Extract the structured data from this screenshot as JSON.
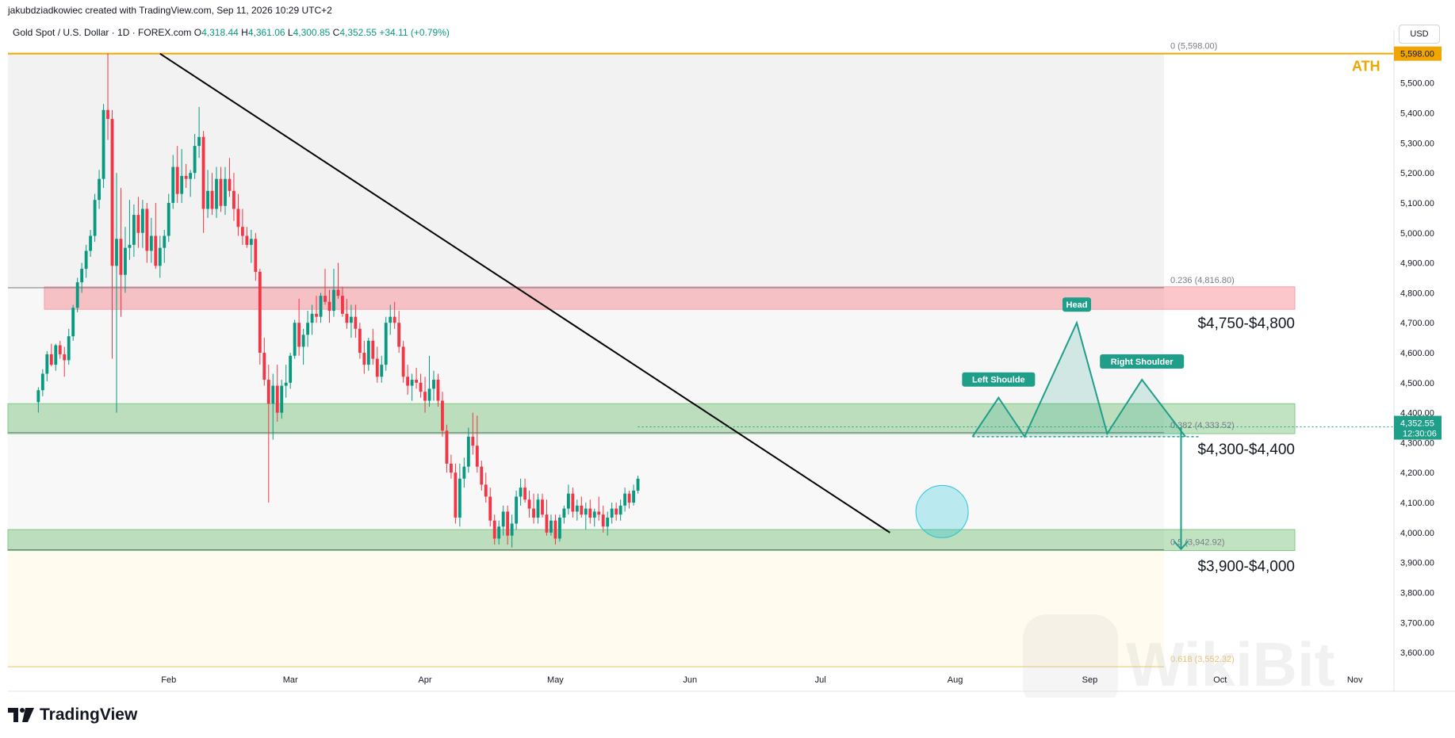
{
  "header": {
    "credit": "jakubdziadkowiec created with TradingView.com, Sep 11, 2026 10:29 UTC+2",
    "symbol": "Gold Spot / U.S. Dollar · 1D · FOREX.com",
    "ohlc": {
      "o_label": "O",
      "o": "4,318.44",
      "h_label": "H",
      "h": "4,361.06",
      "l_label": "L",
      "l": "4,300.85",
      "c_label": "C",
      "c": "4,352.55",
      "change": "+34.11 (+0.79%)"
    },
    "currency": "USD"
  },
  "brand": {
    "name": "TradingView"
  },
  "watermark": "WikiBit",
  "colors": {
    "up": "#089981",
    "down": "#f23645",
    "red_zone": "rgba(242,54,69,0.28)",
    "green_zone": "rgba(76,175,80,0.35)",
    "ath_line": "#f0a500",
    "fib_618": "#e9c46a",
    "pattern": "#1f9e89"
  },
  "chart_data": {
    "type": "candlestick",
    "title": "Gold Spot / U.S. Dollar · 1D · FOREX.com",
    "y_axis": {
      "ylim": [
        3550,
        5650
      ],
      "ticks": [
        "3,600.00",
        "3,700.00",
        "3,800.00",
        "3,900.00",
        "4,000.00",
        "4,100.00",
        "4,200.00",
        "4,300.00",
        "4,400.00",
        "4,500.00",
        "4,600.00",
        "4,700.00",
        "4,800.00",
        "4,900.00",
        "5,000.00",
        "5,100.00",
        "5,200.00",
        "5,300.00",
        "5,400.00",
        "5,500.00"
      ],
      "tick_values": [
        3600,
        3700,
        3800,
        3900,
        4000,
        4100,
        4200,
        4300,
        4400,
        4500,
        4600,
        4700,
        4800,
        4900,
        5000,
        5100,
        5200,
        5300,
        5400,
        5500
      ]
    },
    "x_axis": {
      "labels": [
        "Feb",
        "Mar",
        "Apr",
        "May",
        "Jun",
        "Jul",
        "Aug",
        "Sep",
        "Oct",
        "Nov"
      ],
      "label_days": [
        31,
        59,
        90,
        120,
        151,
        181,
        212,
        243,
        273,
        304
      ]
    },
    "last_price": {
      "value": 4352.55,
      "label": "4,352.55",
      "countdown": "12:30:06"
    },
    "ath": {
      "value": 5598.0,
      "label": "5,598.00",
      "text": "ATH"
    },
    "fib_levels": [
      {
        "label": "0 (5,598.00)",
        "value": 5598.0
      },
      {
        "label": "0.236 (4,816.80)",
        "value": 4816.8
      },
      {
        "label": "0.382 (4,333.52)",
        "value": 4333.52
      },
      {
        "label": "0.5 (3,942.92)",
        "value": 3942.92
      },
      {
        "label": "0.618 (3,552.32)",
        "value": 3552.32
      }
    ],
    "zones": [
      {
        "label": "$4,750-$4,800",
        "low": 4745,
        "high": 4820,
        "kind": "resistance"
      },
      {
        "label": "$4,300-$4,400",
        "low": 4330,
        "high": 4430,
        "kind": "support"
      },
      {
        "label": "$3,900-$4,000",
        "low": 3940,
        "high": 4010,
        "kind": "support"
      }
    ],
    "trendline": {
      "from": {
        "day": 29,
        "price": 5598
      },
      "to": {
        "day": 197,
        "price": 4000
      }
    },
    "pattern_labels": [
      "Left Shoulde",
      "Head",
      "Right Shoulder"
    ],
    "head_and_shoulders": {
      "points": [
        [
          216,
          4320
        ],
        [
          222,
          4450
        ],
        [
          228,
          4320
        ],
        [
          240,
          4700
        ],
        [
          247,
          4330
        ],
        [
          255,
          4510
        ],
        [
          265,
          4320
        ]
      ],
      "neckline": 4320
    },
    "projection": {
      "from": {
        "day": 264,
        "price": 4352
      },
      "to": {
        "day": 264,
        "price": 3945
      }
    },
    "breakout_marker": {
      "day": 209,
      "price": 4070
    },
    "candles": [
      {
        "day": 1,
        "o": 4435,
        "h": 4485,
        "l": 4400,
        "c": 4475
      },
      {
        "day": 2,
        "o": 4475,
        "h": 4545,
        "l": 4455,
        "c": 4530
      },
      {
        "day": 3,
        "o": 4530,
        "h": 4605,
        "l": 4505,
        "c": 4595
      },
      {
        "day": 4,
        "o": 4595,
        "h": 4630,
        "l": 4555,
        "c": 4560
      },
      {
        "day": 5,
        "o": 4560,
        "h": 4630,
        "l": 4540,
        "c": 4625
      },
      {
        "day": 6,
        "o": 4625,
        "h": 4640,
        "l": 4580,
        "c": 4595
      },
      {
        "day": 7,
        "o": 4595,
        "h": 4620,
        "l": 4520,
        "c": 4575
      },
      {
        "day": 8,
        "o": 4575,
        "h": 4680,
        "l": 4560,
        "c": 4655
      },
      {
        "day": 9,
        "o": 4655,
        "h": 4760,
        "l": 4640,
        "c": 4750
      },
      {
        "day": 10,
        "o": 4750,
        "h": 4850,
        "l": 4735,
        "c": 4835
      },
      {
        "day": 11,
        "o": 4835,
        "h": 4900,
        "l": 4800,
        "c": 4880
      },
      {
        "day": 12,
        "o": 4880,
        "h": 4960,
        "l": 4850,
        "c": 4940
      },
      {
        "day": 13,
        "o": 4940,
        "h": 5010,
        "l": 4920,
        "c": 4990
      },
      {
        "day": 14,
        "o": 4990,
        "h": 5130,
        "l": 4970,
        "c": 5110
      },
      {
        "day": 15,
        "o": 5110,
        "h": 5210,
        "l": 5080,
        "c": 5180
      },
      {
        "day": 16,
        "o": 5180,
        "h": 5430,
        "l": 5150,
        "c": 5410
      },
      {
        "day": 17,
        "o": 5410,
        "h": 5598,
        "l": 5310,
        "c": 5380
      },
      {
        "day": 18,
        "o": 5380,
        "h": 5410,
        "l": 4580,
        "c": 4890
      },
      {
        "day": 19,
        "o": 4890,
        "h": 5200,
        "l": 4400,
        "c": 4980
      },
      {
        "day": 20,
        "o": 4980,
        "h": 5150,
        "l": 4720,
        "c": 4860
      },
      {
        "day": 21,
        "o": 4860,
        "h": 5020,
        "l": 4800,
        "c": 4950
      },
      {
        "day": 22,
        "o": 4950,
        "h": 5110,
        "l": 4910,
        "c": 4960
      },
      {
        "day": 23,
        "o": 4960,
        "h": 5095,
        "l": 4920,
        "c": 5060
      },
      {
        "day": 24,
        "o": 5060,
        "h": 5120,
        "l": 4950,
        "c": 5000
      },
      {
        "day": 25,
        "o": 5000,
        "h": 5110,
        "l": 4950,
        "c": 5080
      },
      {
        "day": 26,
        "o": 5080,
        "h": 5100,
        "l": 4900,
        "c": 4940
      },
      {
        "day": 27,
        "o": 4940,
        "h": 5050,
        "l": 4900,
        "c": 4990
      },
      {
        "day": 28,
        "o": 4990,
        "h": 5100,
        "l": 4880,
        "c": 4890
      },
      {
        "day": 29,
        "o": 4890,
        "h": 4990,
        "l": 4850,
        "c": 4950
      },
      {
        "day": 30,
        "o": 4950,
        "h": 5010,
        "l": 4900,
        "c": 4990
      },
      {
        "day": 31,
        "o": 4990,
        "h": 5130,
        "l": 4970,
        "c": 5100
      },
      {
        "day": 32,
        "o": 5100,
        "h": 5260,
        "l": 5080,
        "c": 5220
      },
      {
        "day": 33,
        "o": 5220,
        "h": 5290,
        "l": 5100,
        "c": 5130
      },
      {
        "day": 34,
        "o": 5130,
        "h": 5280,
        "l": 5100,
        "c": 5190
      },
      {
        "day": 35,
        "o": 5190,
        "h": 5230,
        "l": 5150,
        "c": 5180
      },
      {
        "day": 36,
        "o": 5180,
        "h": 5210,
        "l": 5120,
        "c": 5200
      },
      {
        "day": 37,
        "o": 5200,
        "h": 5330,
        "l": 5180,
        "c": 5290
      },
      {
        "day": 38,
        "o": 5290,
        "h": 5420,
        "l": 5250,
        "c": 5320
      },
      {
        "day": 39,
        "o": 5320,
        "h": 5340,
        "l": 5000,
        "c": 5080
      },
      {
        "day": 40,
        "o": 5080,
        "h": 5210,
        "l": 5050,
        "c": 5140
      },
      {
        "day": 41,
        "o": 5140,
        "h": 5200,
        "l": 5060,
        "c": 5080
      },
      {
        "day": 42,
        "o": 5080,
        "h": 5220,
        "l": 5050,
        "c": 5180
      },
      {
        "day": 43,
        "o": 5180,
        "h": 5220,
        "l": 5070,
        "c": 5090
      },
      {
        "day": 44,
        "o": 5090,
        "h": 5220,
        "l": 5060,
        "c": 5180
      },
      {
        "day": 45,
        "o": 5180,
        "h": 5250,
        "l": 5120,
        "c": 5140
      },
      {
        "day": 46,
        "o": 5140,
        "h": 5200,
        "l": 5040,
        "c": 5080
      },
      {
        "day": 47,
        "o": 5080,
        "h": 5130,
        "l": 4990,
        "c": 5020
      },
      {
        "day": 48,
        "o": 5020,
        "h": 5080,
        "l": 4960,
        "c": 4990
      },
      {
        "day": 49,
        "o": 4990,
        "h": 5020,
        "l": 4950,
        "c": 4960
      },
      {
        "day": 50,
        "o": 4960,
        "h": 5010,
        "l": 4900,
        "c": 4980
      },
      {
        "day": 51,
        "o": 4980,
        "h": 5000,
        "l": 4840,
        "c": 4870
      },
      {
        "day": 52,
        "o": 4870,
        "h": 4880,
        "l": 4560,
        "c": 4600
      },
      {
        "day": 53,
        "o": 4600,
        "h": 4650,
        "l": 4490,
        "c": 4510
      },
      {
        "day": 54,
        "o": 4510,
        "h": 4560,
        "l": 4100,
        "c": 4430
      },
      {
        "day": 55,
        "o": 4430,
        "h": 4530,
        "l": 4310,
        "c": 4490
      },
      {
        "day": 56,
        "o": 4490,
        "h": 4560,
        "l": 4370,
        "c": 4400
      },
      {
        "day": 57,
        "o": 4400,
        "h": 4510,
        "l": 4380,
        "c": 4490
      },
      {
        "day": 58,
        "o": 4490,
        "h": 4560,
        "l": 4450,
        "c": 4500
      },
      {
        "day": 59,
        "o": 4500,
        "h": 4600,
        "l": 4480,
        "c": 4590
      },
      {
        "day": 60,
        "o": 4590,
        "h": 4710,
        "l": 4580,
        "c": 4700
      },
      {
        "day": 61,
        "o": 4700,
        "h": 4780,
        "l": 4590,
        "c": 4620
      },
      {
        "day": 62,
        "o": 4620,
        "h": 4680,
        "l": 4560,
        "c": 4660
      },
      {
        "day": 63,
        "o": 4660,
        "h": 4740,
        "l": 4620,
        "c": 4700
      },
      {
        "day": 64,
        "o": 4700,
        "h": 4760,
        "l": 4660,
        "c": 4730
      },
      {
        "day": 65,
        "o": 4730,
        "h": 4790,
        "l": 4700,
        "c": 4720
      },
      {
        "day": 66,
        "o": 4720,
        "h": 4800,
        "l": 4700,
        "c": 4790
      },
      {
        "day": 67,
        "o": 4790,
        "h": 4880,
        "l": 4760,
        "c": 4770
      },
      {
        "day": 68,
        "o": 4770,
        "h": 4810,
        "l": 4700,
        "c": 4740
      },
      {
        "day": 69,
        "o": 4740,
        "h": 4880,
        "l": 4720,
        "c": 4810
      },
      {
        "day": 70,
        "o": 4810,
        "h": 4900,
        "l": 4780,
        "c": 4790
      },
      {
        "day": 71,
        "o": 4790,
        "h": 4820,
        "l": 4720,
        "c": 4730
      },
      {
        "day": 72,
        "o": 4730,
        "h": 4780,
        "l": 4680,
        "c": 4700
      },
      {
        "day": 73,
        "o": 4700,
        "h": 4760,
        "l": 4650,
        "c": 4720
      },
      {
        "day": 74,
        "o": 4720,
        "h": 4760,
        "l": 4650,
        "c": 4680
      },
      {
        "day": 75,
        "o": 4680,
        "h": 4700,
        "l": 4580,
        "c": 4600
      },
      {
        "day": 76,
        "o": 4600,
        "h": 4640,
        "l": 4530,
        "c": 4560
      },
      {
        "day": 77,
        "o": 4560,
        "h": 4650,
        "l": 4540,
        "c": 4640
      },
      {
        "day": 78,
        "o": 4640,
        "h": 4680,
        "l": 4560,
        "c": 4580
      },
      {
        "day": 79,
        "o": 4580,
        "h": 4620,
        "l": 4500,
        "c": 4520
      },
      {
        "day": 80,
        "o": 4520,
        "h": 4590,
        "l": 4500,
        "c": 4560
      },
      {
        "day": 81,
        "o": 4560,
        "h": 4720,
        "l": 4540,
        "c": 4700
      },
      {
        "day": 82,
        "o": 4700,
        "h": 4760,
        "l": 4660,
        "c": 4720
      },
      {
        "day": 83,
        "o": 4720,
        "h": 4770,
        "l": 4680,
        "c": 4700
      },
      {
        "day": 84,
        "o": 4700,
        "h": 4740,
        "l": 4600,
        "c": 4620
      },
      {
        "day": 85,
        "o": 4620,
        "h": 4640,
        "l": 4500,
        "c": 4520
      },
      {
        "day": 86,
        "o": 4520,
        "h": 4560,
        "l": 4460,
        "c": 4490
      },
      {
        "day": 87,
        "o": 4490,
        "h": 4530,
        "l": 4440,
        "c": 4510
      },
      {
        "day": 88,
        "o": 4510,
        "h": 4550,
        "l": 4480,
        "c": 4500
      },
      {
        "day": 89,
        "o": 4500,
        "h": 4530,
        "l": 4450,
        "c": 4470
      },
      {
        "day": 90,
        "o": 4470,
        "h": 4520,
        "l": 4400,
        "c": 4440
      },
      {
        "day": 91,
        "o": 4440,
        "h": 4590,
        "l": 4420,
        "c": 4480
      },
      {
        "day": 92,
        "o": 4480,
        "h": 4540,
        "l": 4440,
        "c": 4510
      },
      {
        "day": 93,
        "o": 4510,
        "h": 4530,
        "l": 4420,
        "c": 4440
      },
      {
        "day": 94,
        "o": 4440,
        "h": 4470,
        "l": 4320,
        "c": 4340
      },
      {
        "day": 95,
        "o": 4340,
        "h": 4360,
        "l": 4200,
        "c": 4230
      },
      {
        "day": 96,
        "o": 4230,
        "h": 4260,
        "l": 4180,
        "c": 4200
      },
      {
        "day": 97,
        "o": 4200,
        "h": 4230,
        "l": 4030,
        "c": 4050
      },
      {
        "day": 98,
        "o": 4050,
        "h": 4230,
        "l": 4020,
        "c": 4180
      },
      {
        "day": 99,
        "o": 4180,
        "h": 4250,
        "l": 4150,
        "c": 4220
      },
      {
        "day": 100,
        "o": 4220,
        "h": 4350,
        "l": 4200,
        "c": 4320
      },
      {
        "day": 101,
        "o": 4320,
        "h": 4400,
        "l": 4260,
        "c": 4290
      },
      {
        "day": 102,
        "o": 4290,
        "h": 4390,
        "l": 4200,
        "c": 4220
      },
      {
        "day": 103,
        "o": 4220,
        "h": 4240,
        "l": 4140,
        "c": 4160
      },
      {
        "day": 104,
        "o": 4160,
        "h": 4200,
        "l": 4100,
        "c": 4120
      },
      {
        "day": 105,
        "o": 4120,
        "h": 4150,
        "l": 4020,
        "c": 4040
      },
      {
        "day": 106,
        "o": 4040,
        "h": 4060,
        "l": 3960,
        "c": 3980
      },
      {
        "day": 107,
        "o": 3980,
        "h": 4040,
        "l": 3960,
        "c": 4020
      },
      {
        "day": 108,
        "o": 4020,
        "h": 4090,
        "l": 3990,
        "c": 4070
      },
      {
        "day": 109,
        "o": 4070,
        "h": 4090,
        "l": 3960,
        "c": 3990
      },
      {
        "day": 110,
        "o": 3990,
        "h": 4060,
        "l": 3950,
        "c": 4030
      },
      {
        "day": 111,
        "o": 4030,
        "h": 4140,
        "l": 4010,
        "c": 4120
      },
      {
        "day": 112,
        "o": 4120,
        "h": 4180,
        "l": 4090,
        "c": 4150
      },
      {
        "day": 113,
        "o": 4150,
        "h": 4180,
        "l": 4100,
        "c": 4110
      },
      {
        "day": 114,
        "o": 4110,
        "h": 4140,
        "l": 4050,
        "c": 4080
      },
      {
        "day": 115,
        "o": 4080,
        "h": 4130,
        "l": 4030,
        "c": 4050
      },
      {
        "day": 116,
        "o": 4050,
        "h": 4130,
        "l": 4030,
        "c": 4110
      },
      {
        "day": 117,
        "o": 4110,
        "h": 4130,
        "l": 4050,
        "c": 4060
      },
      {
        "day": 118,
        "o": 4060,
        "h": 4110,
        "l": 3990,
        "c": 4000
      },
      {
        "day": 119,
        "o": 4000,
        "h": 4060,
        "l": 3990,
        "c": 4040
      },
      {
        "day": 120,
        "o": 4040,
        "h": 4060,
        "l": 3960,
        "c": 3980
      },
      {
        "day": 121,
        "o": 3980,
        "h": 4060,
        "l": 3970,
        "c": 4050
      },
      {
        "day": 122,
        "o": 4050,
        "h": 4090,
        "l": 4030,
        "c": 4080
      },
      {
        "day": 123,
        "o": 4080,
        "h": 4160,
        "l": 4060,
        "c": 4130
      },
      {
        "day": 124,
        "o": 4130,
        "h": 4150,
        "l": 4050,
        "c": 4070
      },
      {
        "day": 125,
        "o": 4070,
        "h": 4110,
        "l": 4040,
        "c": 4090
      },
      {
        "day": 126,
        "o": 4090,
        "h": 4120,
        "l": 4050,
        "c": 4060
      },
      {
        "day": 127,
        "o": 4060,
        "h": 4100,
        "l": 4010,
        "c": 4080
      },
      {
        "day": 128,
        "o": 4080,
        "h": 4110,
        "l": 4030,
        "c": 4050
      },
      {
        "day": 129,
        "o": 4050,
        "h": 4080,
        "l": 4020,
        "c": 4070
      },
      {
        "day": 130,
        "o": 4070,
        "h": 4120,
        "l": 4040,
        "c": 4060
      },
      {
        "day": 131,
        "o": 4060,
        "h": 4090,
        "l": 4000,
        "c": 4020
      },
      {
        "day": 132,
        "o": 4020,
        "h": 4070,
        "l": 3990,
        "c": 4050
      },
      {
        "day": 133,
        "o": 4050,
        "h": 4100,
        "l": 4030,
        "c": 4080
      },
      {
        "day": 134,
        "o": 4080,
        "h": 4100,
        "l": 4040,
        "c": 4060
      },
      {
        "day": 135,
        "o": 4060,
        "h": 4110,
        "l": 4040,
        "c": 4090
      },
      {
        "day": 136,
        "o": 4090,
        "h": 4150,
        "l": 4070,
        "c": 4130
      },
      {
        "day": 137,
        "o": 4130,
        "h": 4140,
        "l": 4080,
        "c": 4100
      },
      {
        "day": 138,
        "o": 4100,
        "h": 4160,
        "l": 4090,
        "c": 4140
      },
      {
        "day": 139,
        "o": 4140,
        "h": 4190,
        "l": 4130,
        "c": 4180
      }
    ]
  }
}
